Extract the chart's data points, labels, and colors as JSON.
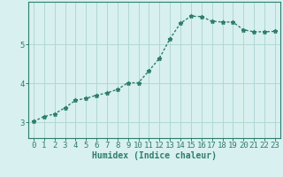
{
  "x": [
    0,
    1,
    2,
    3,
    4,
    5,
    6,
    7,
    8,
    9,
    10,
    11,
    12,
    13,
    14,
    15,
    16,
    17,
    18,
    19,
    20,
    21,
    22,
    23
  ],
  "y": [
    3.03,
    3.15,
    3.22,
    3.38,
    3.57,
    3.62,
    3.7,
    3.76,
    3.85,
    4.02,
    4.02,
    4.33,
    4.65,
    5.15,
    5.55,
    5.73,
    5.72,
    5.6,
    5.58,
    5.58,
    5.38,
    5.33,
    5.33,
    5.34
  ],
  "line_color": "#2e7d6e",
  "marker": "*",
  "marker_size": 3.5,
  "bg_color": "#d8f0ef",
  "grid_color": "#b0d8d5",
  "axis_color": "#2e7d6e",
  "xlabel": "Humidex (Indice chaleur)",
  "xlabel_fontsize": 7,
  "yticks": [
    3,
    4,
    5
  ],
  "ylim": [
    2.6,
    6.1
  ],
  "xlim": [
    -0.5,
    23.5
  ],
  "line_width": 1.0,
  "tick_fontsize": 6.5
}
